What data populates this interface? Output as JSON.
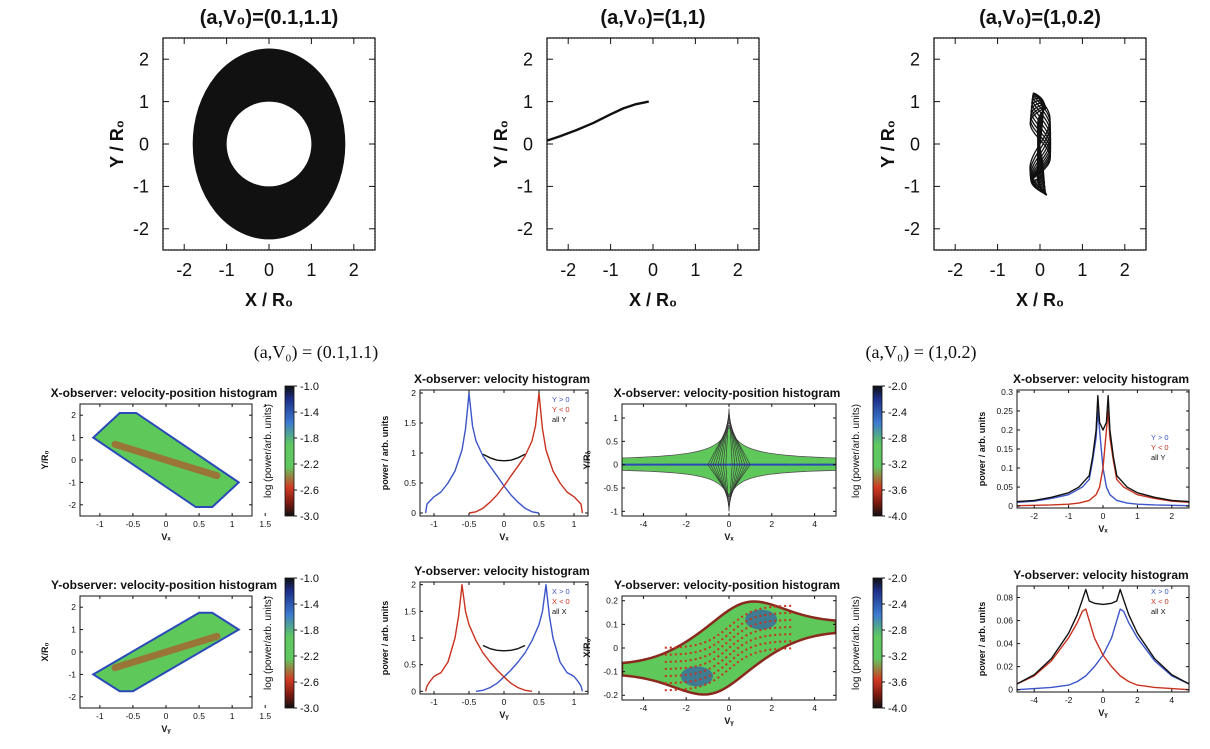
{
  "section_labels": [
    "(a,V₀) = (0.1,1.1)",
    "(a,V₀) = (1,0.2)"
  ],
  "colorbar_label": "log (power/arb. units)",
  "colors": {
    "blue": "#3c55c8",
    "red": "#c8321e",
    "black": "#111111",
    "green": "#5fc85a"
  },
  "chart_data": [
    {
      "type": "line",
      "title": "(a,V₀)=(0.1,1.1)",
      "xlabel": "X / R₀",
      "ylabel": "Y / R₀",
      "xlim": [
        -2.5,
        2.5
      ],
      "ylim": [
        -2.5,
        2.5
      ],
      "xticks": [
        -2,
        -1,
        0,
        1,
        2
      ],
      "yticks": [
        -2,
        -1,
        0,
        1,
        2
      ],
      "orbit": {
        "kind": "annulus",
        "center": [
          0,
          0
        ],
        "outer_rx": 1.8,
        "outer_ry": 2.25,
        "inner_rx": 1.0,
        "inner_ry": 1.0
      }
    },
    {
      "type": "line",
      "title": "(a,V₀)=(1,1)",
      "xlabel": "X / R₀",
      "ylabel": "Y / R₀",
      "xlim": [
        -2.5,
        2.5
      ],
      "ylim": [
        -2.5,
        2.5
      ],
      "xticks": [
        -2,
        -1,
        0,
        1,
        2
      ],
      "yticks": [
        -2,
        -1,
        0,
        1,
        2
      ],
      "series": [
        {
          "x": [
            -2.5,
            -2.2,
            -1.8,
            -1.4,
            -1.0,
            -0.7,
            -0.4,
            -0.1
          ],
          "y": [
            0.08,
            0.18,
            0.33,
            0.5,
            0.7,
            0.84,
            0.94,
            1.0
          ]
        }
      ]
    },
    {
      "type": "line",
      "title": "(a,V₀)=(1,0.2)",
      "xlabel": "X / R₀",
      "ylabel": "Y / R₀",
      "xlim": [
        -2.5,
        2.5
      ],
      "ylim": [
        -2.5,
        2.5
      ],
      "xticks": [
        -2,
        -1,
        0,
        1,
        2
      ],
      "yticks": [
        -2,
        -1,
        0,
        1,
        2
      ],
      "orbit": {
        "kind": "loops",
        "x_extent": 0.25,
        "y_extent": 1.2
      }
    },
    {
      "type": "heatmap",
      "title": "X-observer: velocity-position histogram",
      "xlabel": "Vₓ",
      "ylabel": "Y/R₀",
      "xlim": [
        -1.3,
        1.3
      ],
      "ylim": [
        -2.5,
        2.5
      ],
      "xticks": [
        -1.0,
        -0.5,
        0.0,
        0.5,
        1.0,
        1.5
      ],
      "yticks": [
        -2,
        -1,
        0,
        1,
        2
      ],
      "region": [
        [
          -1.1,
          1.0
        ],
        [
          -0.7,
          2.1
        ],
        [
          -0.45,
          2.1
        ],
        [
          1.1,
          -1.0
        ],
        [
          0.7,
          -2.1
        ],
        [
          0.45,
          -2.1
        ]
      ],
      "colorbar": {
        "ticks": [
          "-1.0",
          "-1.4",
          "-1.8",
          "-2.2",
          "-2.6",
          "-3.0"
        ],
        "range": [
          -3.0,
          -1.0
        ]
      }
    },
    {
      "type": "line",
      "title": "X-observer: velocity histogram",
      "xlabel": "Vₓ",
      "ylabel": "power / arb. units",
      "xlim": [
        -1.2,
        1.2
      ],
      "ylim": [
        -0.05,
        2.05
      ],
      "xticks": [
        -1.0,
        -0.5,
        0.0,
        0.5,
        1.0
      ],
      "yticks": [
        0.0,
        0.5,
        1.0,
        1.5,
        2.0
      ],
      "legend": [
        "Y > 0",
        "Y < 0",
        "all Y"
      ],
      "series": [
        {
          "name": "Y > 0",
          "color": "#3c55c8",
          "x": [
            -1.12,
            -1.1,
            -1.0,
            -0.9,
            -0.8,
            -0.7,
            -0.6,
            -0.55,
            -0.52,
            -0.5,
            -0.45,
            -0.4,
            -0.3,
            -0.2,
            -0.1,
            0.0,
            0.1,
            0.2,
            0.3,
            0.4,
            0.5
          ],
          "y": [
            0.0,
            0.15,
            0.27,
            0.35,
            0.5,
            0.7,
            1.05,
            1.4,
            1.75,
            2.0,
            1.45,
            1.2,
            0.95,
            0.78,
            0.62,
            0.45,
            0.3,
            0.18,
            0.08,
            0.02,
            0.0
          ]
        },
        {
          "name": "Y < 0",
          "color": "#c8321e",
          "x": [
            -0.5,
            -0.4,
            -0.3,
            -0.2,
            -0.1,
            0.0,
            0.1,
            0.2,
            0.3,
            0.4,
            0.45,
            0.5,
            0.52,
            0.55,
            0.6,
            0.7,
            0.8,
            0.9,
            1.0,
            1.1,
            1.12
          ],
          "y": [
            0.0,
            0.02,
            0.08,
            0.18,
            0.3,
            0.45,
            0.62,
            0.78,
            0.95,
            1.2,
            1.45,
            2.0,
            1.75,
            1.4,
            1.05,
            0.7,
            0.5,
            0.35,
            0.27,
            0.15,
            0.0
          ]
        },
        {
          "name": "all Y",
          "color": "#111111",
          "x": [
            -0.3,
            -0.2,
            -0.1,
            0.0,
            0.1,
            0.2,
            0.3
          ],
          "y": [
            0.98,
            0.92,
            0.88,
            0.87,
            0.88,
            0.92,
            0.98
          ]
        }
      ]
    },
    {
      "type": "heatmap",
      "title": "X-observer: velocity-position histogram",
      "xlabel": "Vₓ",
      "ylabel": "Y/R₀",
      "xlim": [
        -5,
        5
      ],
      "ylim": [
        -1.1,
        1.3
      ],
      "xticks": [
        -4,
        -2,
        0,
        2,
        4
      ],
      "yticks": [
        -1.0,
        -0.5,
        0.0,
        0.5,
        1.0
      ],
      "colorbar": {
        "ticks": [
          "-2.0",
          "-2.4",
          "-2.8",
          "-3.2",
          "-3.6",
          "-4.0"
        ],
        "range": [
          -4.0,
          -2.0
        ]
      }
    },
    {
      "type": "line",
      "title": "X-observer: velocity histogram",
      "xlabel": "Vₓ",
      "ylabel": "power / arb. units",
      "xlim": [
        -2.5,
        2.5
      ],
      "ylim": [
        -0.005,
        0.305
      ],
      "xticks": [
        -2,
        -1,
        0,
        1,
        2
      ],
      "yticks": [
        0.0,
        0.05,
        0.1,
        0.15,
        0.2,
        0.25,
        0.3
      ],
      "legend": [
        "Y > 0",
        "Y < 0",
        "all Y"
      ],
      "series": [
        {
          "name": "Y > 0",
          "color": "#3c55c8",
          "x": [
            -2.5,
            -2.0,
            -1.5,
            -1.0,
            -0.6,
            -0.4,
            -0.3,
            -0.2,
            -0.15,
            -0.1,
            0.0,
            0.1,
            0.2,
            0.4,
            0.7,
            1.0,
            1.5,
            2.0,
            2.5
          ],
          "y": [
            0.01,
            0.013,
            0.02,
            0.03,
            0.05,
            0.07,
            0.12,
            0.18,
            0.25,
            0.2,
            0.1,
            0.05,
            0.03,
            0.015,
            0.008,
            0.005,
            0.003,
            0.002,
            0.001
          ]
        },
        {
          "name": "Y < 0",
          "color": "#c8321e",
          "x": [
            -2.5,
            -2.0,
            -1.5,
            -1.0,
            -0.7,
            -0.4,
            -0.2,
            -0.1,
            0.0,
            0.1,
            0.15,
            0.2,
            0.3,
            0.4,
            0.6,
            1.0,
            1.5,
            2.0,
            2.5
          ],
          "y": [
            0.001,
            0.002,
            0.003,
            0.005,
            0.008,
            0.015,
            0.03,
            0.05,
            0.1,
            0.2,
            0.25,
            0.18,
            0.12,
            0.07,
            0.05,
            0.03,
            0.02,
            0.013,
            0.01
          ]
        },
        {
          "name": "all Y",
          "color": "#111111",
          "x": [
            -2.5,
            -2.0,
            -1.5,
            -1.0,
            -0.7,
            -0.5,
            -0.4,
            -0.3,
            -0.2,
            -0.15,
            -0.1,
            0.0,
            0.1,
            0.15,
            0.2,
            0.3,
            0.4,
            0.5,
            0.7,
            1.0,
            1.5,
            2.0,
            2.5
          ],
          "y": [
            0.012,
            0.015,
            0.023,
            0.035,
            0.05,
            0.07,
            0.08,
            0.13,
            0.2,
            0.29,
            0.22,
            0.2,
            0.22,
            0.29,
            0.2,
            0.13,
            0.08,
            0.07,
            0.05,
            0.035,
            0.023,
            0.015,
            0.012
          ]
        }
      ]
    },
    {
      "type": "heatmap",
      "title": "Y-observer: velocity-position histogram",
      "xlabel": "Vᵧ",
      "ylabel": "X/R₀",
      "xlim": [
        -1.3,
        1.3
      ],
      "ylim": [
        -2.5,
        2.5
      ],
      "xticks": [
        -1.0,
        -0.5,
        0.0,
        0.5,
        1.0,
        1.5
      ],
      "yticks": [
        -2,
        -1,
        0,
        1,
        2
      ],
      "region": [
        [
          -1.1,
          -1.0
        ],
        [
          -0.7,
          -1.75
        ],
        [
          -0.5,
          -1.75
        ],
        [
          1.1,
          1.0
        ],
        [
          0.7,
          1.75
        ],
        [
          0.5,
          1.75
        ]
      ],
      "colorbar": {
        "ticks": [
          "-1.0",
          "-1.4",
          "-1.8",
          "-2.2",
          "-2.6",
          "-3.0"
        ],
        "range": [
          -3.0,
          -1.0
        ]
      }
    },
    {
      "type": "line",
      "title": "Y-observer: velocity histogram",
      "xlabel": "Vᵧ",
      "ylabel": "power / arb. units",
      "xlim": [
        -1.2,
        1.2
      ],
      "ylim": [
        -0.05,
        2.05
      ],
      "xticks": [
        -1.0,
        -0.5,
        0.0,
        0.5,
        1.0
      ],
      "yticks": [
        0.0,
        0.5,
        1.0,
        1.5,
        2.0
      ],
      "legend": [
        "X > 0",
        "X < 0",
        "all X"
      ],
      "series": [
        {
          "name": "X > 0",
          "color": "#3c55c8",
          "x": [
            -0.4,
            -0.3,
            -0.2,
            -0.1,
            0.0,
            0.1,
            0.2,
            0.3,
            0.4,
            0.5,
            0.55,
            0.6,
            0.62,
            0.65,
            0.7,
            0.8,
            0.9,
            1.0,
            1.05,
            1.1,
            1.12
          ],
          "y": [
            0.0,
            0.02,
            0.07,
            0.15,
            0.27,
            0.4,
            0.55,
            0.72,
            0.95,
            1.25,
            1.5,
            2.0,
            1.75,
            1.4,
            1.0,
            0.55,
            0.35,
            0.28,
            0.2,
            0.1,
            0.0
          ]
        },
        {
          "name": "X < 0",
          "color": "#c8321e",
          "x": [
            -1.12,
            -1.1,
            -1.05,
            -1.0,
            -0.9,
            -0.8,
            -0.7,
            -0.65,
            -0.62,
            -0.6,
            -0.55,
            -0.5,
            -0.4,
            -0.3,
            -0.2,
            -0.1,
            0.0,
            0.1,
            0.2,
            0.3,
            0.4
          ],
          "y": [
            0.0,
            0.1,
            0.2,
            0.28,
            0.35,
            0.55,
            1.0,
            1.4,
            1.75,
            2.0,
            1.5,
            1.25,
            0.95,
            0.72,
            0.55,
            0.4,
            0.27,
            0.15,
            0.07,
            0.02,
            0.0
          ]
        },
        {
          "name": "all X",
          "color": "#111111",
          "x": [
            -0.3,
            -0.2,
            -0.1,
            0.0,
            0.1,
            0.2,
            0.3
          ],
          "y": [
            0.86,
            0.8,
            0.77,
            0.76,
            0.77,
            0.8,
            0.86
          ]
        }
      ]
    },
    {
      "type": "heatmap",
      "title": "Y-observer: velocity-position histogram",
      "xlabel": "Vᵧ",
      "ylabel": "X/R₀",
      "xlim": [
        -5,
        5
      ],
      "ylim": [
        -0.22,
        0.22
      ],
      "xticks": [
        -4,
        -2,
        0,
        2,
        4
      ],
      "yticks": [
        -0.2,
        -0.1,
        0.0,
        0.1,
        0.2
      ],
      "colorbar": {
        "ticks": [
          "-2.0",
          "-2.4",
          "-2.8",
          "-3.2",
          "-3.6",
          "-4.0"
        ],
        "range": [
          -4.0,
          -2.0
        ]
      }
    },
    {
      "type": "line",
      "title": "Y-observer: velocity histogram",
      "xlabel": "Vᵧ",
      "ylabel": "power / arb. units",
      "xlim": [
        -5,
        5
      ],
      "ylim": [
        -0.002,
        0.09
      ],
      "xticks": [
        -4,
        -2,
        0,
        2,
        4
      ],
      "yticks": [
        0.0,
        0.02,
        0.04,
        0.06,
        0.08
      ],
      "legend": [
        "X > 0",
        "X < 0",
        "all X"
      ],
      "series": [
        {
          "name": "X > 0",
          "color": "#3c55c8",
          "x": [
            -5,
            -4,
            -3,
            -2,
            -1.5,
            -1,
            -0.5,
            0,
            0.5,
            0.8,
            1.0,
            1.2,
            1.5,
            2,
            3,
            4,
            5
          ],
          "y": [
            0.0,
            0.001,
            0.002,
            0.004,
            0.007,
            0.012,
            0.02,
            0.03,
            0.045,
            0.06,
            0.07,
            0.068,
            0.058,
            0.045,
            0.025,
            0.012,
            0.005
          ]
        },
        {
          "name": "X < 0",
          "color": "#c8321e",
          "x": [
            -5,
            -4,
            -3,
            -2,
            -1.5,
            -1.2,
            -1.0,
            -0.8,
            -0.5,
            0,
            0.5,
            1,
            1.5,
            2,
            3,
            4,
            5
          ],
          "y": [
            0.005,
            0.012,
            0.025,
            0.045,
            0.058,
            0.068,
            0.07,
            0.06,
            0.045,
            0.03,
            0.02,
            0.012,
            0.007,
            0.004,
            0.002,
            0.001,
            0.0
          ]
        },
        {
          "name": "all X",
          "color": "#111111",
          "x": [
            -5,
            -4,
            -3,
            -2,
            -1.5,
            -1.2,
            -1.0,
            -0.8,
            -0.5,
            0,
            0.5,
            0.8,
            1.0,
            1.2,
            1.5,
            2,
            3,
            4,
            5
          ],
          "y": [
            0.005,
            0.013,
            0.027,
            0.049,
            0.065,
            0.078,
            0.087,
            0.077,
            0.075,
            0.074,
            0.075,
            0.077,
            0.087,
            0.078,
            0.065,
            0.049,
            0.027,
            0.013,
            0.005
          ]
        }
      ]
    }
  ]
}
